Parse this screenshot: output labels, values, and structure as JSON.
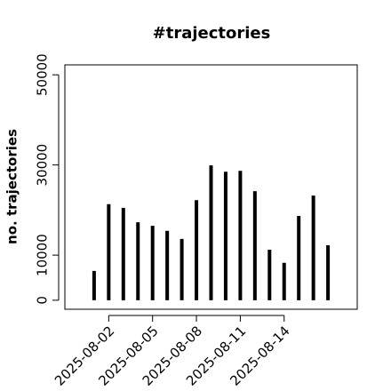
{
  "chart_data": {
    "type": "bar",
    "title": "#trajectories",
    "y_label": "no. trajectories",
    "x": [
      "2025-08-01",
      "2025-08-02",
      "2025-08-03",
      "2025-08-04",
      "2025-08-05",
      "2025-08-06",
      "2025-08-07",
      "2025-08-08",
      "2025-08-09",
      "2025-08-10",
      "2025-08-11",
      "2025-08-12",
      "2025-08-13",
      "2025-08-14",
      "2025-08-15",
      "2025-08-16",
      "2025-08-17"
    ],
    "values": [
      6500,
      21300,
      20500,
      17300,
      16500,
      15400,
      13600,
      22200,
      29900,
      28500,
      28700,
      24200,
      11200,
      8300,
      18700,
      23200,
      12200
    ],
    "color": "#000000",
    "xlim": [
      "2025-07-30",
      "2025-08-19"
    ],
    "xticks": [
      "2025-08-02",
      "2025-08-05",
      "2025-08-08",
      "2025-08-11",
      "2025-08-14"
    ],
    "ylim": [
      -2000,
      52200
    ],
    "yticks": [
      0,
      10000,
      30000,
      50000
    ]
  }
}
